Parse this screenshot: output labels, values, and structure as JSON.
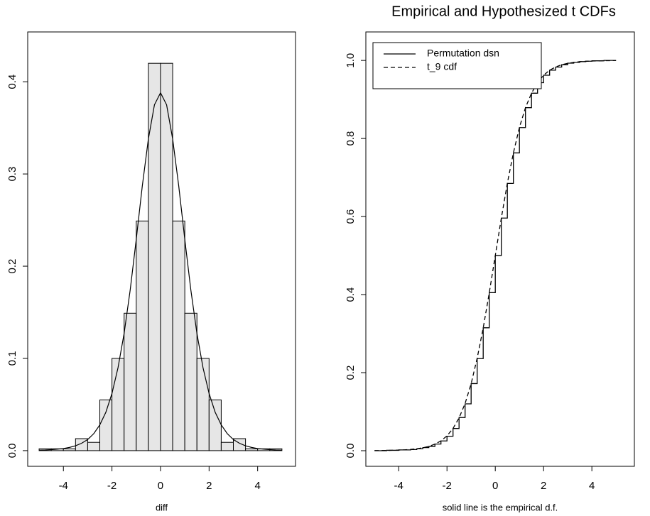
{
  "chart_data": [
    {
      "type": "histogram",
      "x_label": "diff",
      "bins": [
        -5,
        -4.5,
        -4,
        -3.5,
        -3,
        -2.5,
        -2,
        -1.5,
        -1,
        -0.5,
        0,
        0.5,
        1,
        1.5,
        2,
        2.5,
        3,
        3.5,
        4,
        4.5,
        5
      ],
      "values": [
        0.002,
        0.002,
        0.002,
        0.013,
        0.009,
        0.055,
        0.1,
        0.149,
        0.249,
        0.42,
        0.42,
        0.249,
        0.149,
        0.1,
        0.055,
        0.009,
        0.013,
        0.002,
        0.002,
        0.002
      ],
      "color": "#e6e6e6",
      "curve": {
        "color": "#000000",
        "x": [
          -5,
          -4.75,
          -4.5,
          -4.25,
          -4,
          -3.75,
          -3.5,
          -3.25,
          -3,
          -2.75,
          -2.5,
          -2.25,
          -2,
          -1.75,
          -1.5,
          -1.25,
          -1,
          -0.75,
          -0.5,
          -0.25,
          0,
          0.25,
          0.5,
          0.75,
          1,
          1.25,
          1.5,
          1.75,
          2,
          2.25,
          2.5,
          2.75,
          3,
          3.25,
          3.5,
          3.75,
          4,
          4.25,
          4.5,
          4.75,
          5
        ],
        "values": [
          0.0005,
          0.0007,
          0.0011,
          0.0016,
          0.0023,
          0.0035,
          0.0053,
          0.008,
          0.012,
          0.0184,
          0.028,
          0.0417,
          0.062,
          0.09,
          0.127,
          0.174,
          0.229,
          0.287,
          0.338,
          0.375,
          0.388,
          0.375,
          0.338,
          0.287,
          0.229,
          0.174,
          0.127,
          0.09,
          0.062,
          0.0417,
          0.028,
          0.0184,
          0.012,
          0.008,
          0.0053,
          0.0035,
          0.0023,
          0.0016,
          0.0011,
          0.0007,
          0.0005
        ]
      },
      "xlim": [
        -5.47,
        5.56
      ],
      "xticks": [
        -4,
        -2,
        0,
        2,
        4
      ],
      "ylim": [
        -0.017,
        0.454
      ],
      "yticks": [
        {
          "value": 0,
          "label": "0.0"
        },
        0.1,
        0.2,
        0.3,
        0.4
      ]
    },
    {
      "type": "line",
      "title": "Empirical and Hypothesized t CDFs",
      "x_label": "solid line is the empirical d.f.",
      "x": [
        -5,
        -4.75,
        -4.5,
        -4.25,
        -4,
        -3.75,
        -3.5,
        -3.25,
        -3,
        -2.75,
        -2.5,
        -2.25,
        -2,
        -1.75,
        -1.5,
        -1.25,
        -1,
        -0.75,
        -0.5,
        -0.25,
        0,
        0.25,
        0.5,
        0.75,
        1,
        1.25,
        1.5,
        1.75,
        2,
        2.25,
        2.5,
        2.75,
        3,
        3.25,
        3.5,
        3.75,
        4,
        4.25,
        4.5,
        4.75,
        5
      ],
      "series": [
        {
          "name": "Permutation dsn",
          "color": "#000000",
          "step": true,
          "values": [
            0,
            0,
            0.001,
            0.001,
            0.002,
            0.002,
            0.003,
            0.005,
            0.008,
            0.011,
            0.017,
            0.025,
            0.037,
            0.057,
            0.085,
            0.12,
            0.172,
            0.236,
            0.315,
            0.405,
            0.5,
            0.596,
            0.685,
            0.763,
            0.828,
            0.879,
            0.916,
            0.943,
            0.962,
            0.975,
            0.983,
            0.989,
            0.993,
            0.995,
            0.997,
            0.998,
            0.999,
            0.999,
            1,
            1,
            1
          ]
        },
        {
          "name": "t_9 cdf",
          "color": "#000000",
          "dashed": true,
          "values": [
            0.0004,
            0.0005,
            0.0007,
            0.0011,
            0.0016,
            0.0022,
            0.0033,
            0.005,
            0.0075,
            0.011,
            0.0169,
            0.025,
            0.038,
            0.057,
            0.084,
            0.121,
            0.1716,
            0.237,
            0.3145,
            0.4042,
            0.5,
            0.5958,
            0.6855,
            0.763,
            0.8284,
            0.879,
            0.916,
            0.943,
            0.962,
            0.975,
            0.9831,
            0.989,
            0.9925,
            0.995,
            0.9967,
            0.9978,
            0.9984,
            0.9989,
            0.9993,
            0.9995,
            0.9996
          ]
        }
      ],
      "legend": "top-left",
      "xlim": [
        -5.36,
        5.76
      ],
      "xticks": [
        -4,
        -2,
        0,
        2,
        4
      ],
      "ylim": [
        -0.04,
        1.073
      ],
      "yticks": [
        {
          "value": 0,
          "label": "0.0"
        },
        0.2,
        0.4,
        0.6,
        0.8,
        {
          "value": 1,
          "label": "1.0"
        }
      ]
    }
  ]
}
